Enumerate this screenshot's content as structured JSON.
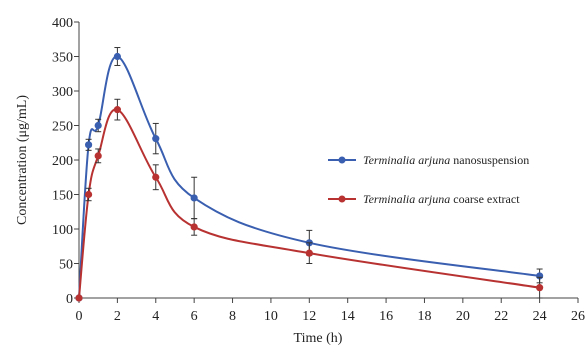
{
  "chart_data": {
    "type": "line",
    "xlabel": "Time (h)",
    "ylabel": "Concentration (μg/mL)",
    "xlim": [
      0,
      26
    ],
    "ylim": [
      0,
      400
    ],
    "xticks": [
      0,
      2,
      4,
      6,
      8,
      10,
      12,
      14,
      16,
      18,
      20,
      22,
      24,
      26
    ],
    "yticks": [
      0,
      50,
      100,
      150,
      200,
      250,
      300,
      350,
      400
    ],
    "legend_position": "right",
    "grid": false,
    "series": [
      {
        "name_italic": "Terminalia arjuna",
        "name_rest": "nanosuspension",
        "color": "#3a5fb0",
        "x": [
          0,
          0.5,
          1,
          2,
          4,
          6,
          12,
          24
        ],
        "y": [
          0,
          222,
          250,
          350,
          231,
          145,
          80,
          32
        ],
        "err": [
          0,
          8,
          9,
          13,
          22,
          30,
          18,
          10
        ]
      },
      {
        "name_italic": "Terminalia arjuna",
        "name_rest": "coarse extract",
        "color": "#b83232",
        "x": [
          0,
          0.5,
          1,
          2,
          4,
          6,
          12,
          24
        ],
        "y": [
          0,
          150,
          206,
          273,
          175,
          103,
          65,
          15
        ],
        "err": [
          0,
          9,
          10,
          15,
          18,
          12,
          15,
          15
        ]
      }
    ]
  }
}
